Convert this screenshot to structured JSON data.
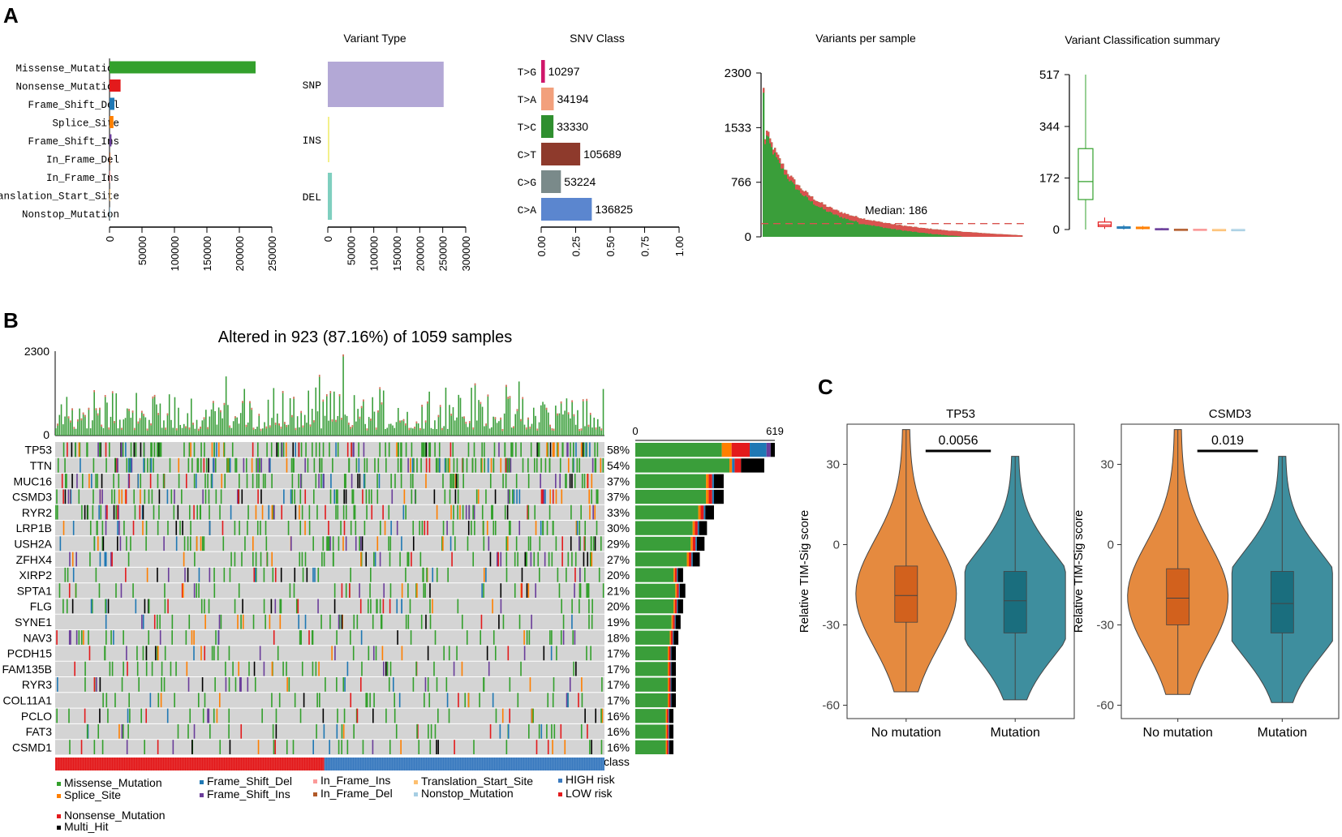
{
  "colors": {
    "missense": "#33a02c",
    "nonsense": "#e31a1c",
    "frameshift_del": "#1f78b4",
    "splice": "#ff7f00",
    "frameshift_ins": "#6a3d9a",
    "inframe_del": "#b15928",
    "inframe_ins": "#fb9a99",
    "translation_start": "#fdbf6f",
    "nonstop": "#a6cee3",
    "multi_hit": "#000000",
    "high_risk": "#3a7abf",
    "low_risk": "#e31a1c",
    "no_mutation": "#e58a3f",
    "mutation": "#3e8e9e",
    "no_mutation_box": "#d2611d",
    "mutation_box": "#1a6e7e",
    "missense_bar": "#3a9e3a"
  },
  "panel_labels": {
    "a": "A",
    "b": "B",
    "c": "C"
  },
  "chart_data": [
    {
      "type": "bar",
      "id": "variant_classification",
      "orientation": "horizontal",
      "categories": [
        "Missense_Mutation",
        "Nonsense_Mutation",
        "Frame_Shift_Del",
        "Splice_Site",
        "Frame_Shift_Ins",
        "In_Frame_Del",
        "In_Frame_Ins",
        "Translation_Start_Site",
        "Nonstop_Mutation"
      ],
      "values": [
        225000,
        17000,
        7500,
        6000,
        3000,
        800,
        600,
        300,
        100
      ],
      "xticks": [
        "0",
        "50000",
        "100000",
        "150000",
        "200000",
        "250000"
      ],
      "xlim": [
        0,
        250000
      ],
      "title": ""
    },
    {
      "type": "bar",
      "id": "variant_type",
      "orientation": "horizontal",
      "title": "Variant Type",
      "categories": [
        "SNP",
        "INS",
        "DEL"
      ],
      "values": [
        252000,
        3500,
        9000
      ],
      "xticks": [
        "0",
        "50000",
        "100000",
        "150000",
        "200000",
        "250000",
        "300000"
      ],
      "xlim": [
        0,
        300000
      ]
    },
    {
      "type": "bar",
      "id": "snv_class",
      "orientation": "horizontal",
      "title": "SNV Class",
      "categories": [
        "T>G",
        "T>A",
        "T>C",
        "C>T",
        "C>G",
        "C>A"
      ],
      "counts": [
        "10297",
        "34194",
        "33330",
        "105689",
        "53224",
        "136825"
      ],
      "values": [
        0.027,
        0.091,
        0.089,
        0.283,
        0.143,
        0.367
      ],
      "xticks": [
        "0.00",
        "0.25",
        "0.50",
        "0.75",
        "1.00"
      ],
      "xlim": [
        0,
        1
      ]
    },
    {
      "type": "bar",
      "id": "variants_per_sample",
      "title": "Variants per sample",
      "yticks": [
        "2300",
        "1533",
        "766",
        "0"
      ],
      "ylim": [
        0,
        2300
      ],
      "median": 186,
      "median_label": "Median: 186",
      "n_samples": 1059
    },
    {
      "type": "box",
      "id": "variant_classification_summary",
      "title": "Variant Classification summary",
      "yticks": [
        "517",
        "344",
        "172",
        "0"
      ],
      "ylim": [
        0,
        517
      ],
      "boxes": [
        {
          "name": "Missense_Mutation",
          "q1": 100,
          "median": 160,
          "q3": 270,
          "min": 0,
          "max": 517
        },
        {
          "name": "Nonsense_Mutation",
          "q1": 10,
          "median": 15,
          "q3": 25,
          "min": 2,
          "max": 40
        },
        {
          "name": "Frame_Shift_Del",
          "q1": 4,
          "median": 6,
          "q3": 9,
          "min": 0,
          "max": 15
        },
        {
          "name": "Splice_Site",
          "q1": 3,
          "median": 5,
          "q3": 8,
          "min": 0,
          "max": 12
        },
        {
          "name": "Frame_Shift_Ins",
          "q1": 1,
          "median": 2,
          "q3": 3,
          "min": 0,
          "max": 5
        },
        {
          "name": "In_Frame_Del",
          "q1": 0,
          "median": 1,
          "q3": 1,
          "min": 0,
          "max": 2
        },
        {
          "name": "In_Frame_Ins",
          "q1": 0,
          "median": 0,
          "q3": 1,
          "min": 0,
          "max": 1
        },
        {
          "name": "Translation_Start_Site",
          "q1": 0,
          "median": 0,
          "q3": 0,
          "min": 0,
          "max": 1
        },
        {
          "name": "Nonstop_Mutation",
          "q1": 0,
          "median": 0,
          "q3": 0,
          "min": 0,
          "max": 1
        }
      ]
    },
    {
      "type": "heatmap",
      "id": "oncoplot",
      "title": "Altered in 923 (87.16%) of 1059 samples",
      "tmb_yticks": [
        "2300",
        "0"
      ],
      "gene_bar_xticks": [
        "0",
        "619"
      ],
      "class_label": "class",
      "genes": [
        "TP53",
        "TTN",
        "MUC16",
        "CSMD3",
        "RYR2",
        "LRP1B",
        "USH2A",
        "ZFHX4",
        "XIRP2",
        "SPTA1",
        "FLG",
        "SYNE1",
        "NAV3",
        "PCDH15",
        "FAM135B",
        "RYR3",
        "COL11A1",
        "PCLO",
        "FAT3",
        "CSMD1"
      ],
      "percents": [
        "58%",
        "54%",
        "37%",
        "37%",
        "33%",
        "30%",
        "29%",
        "27%",
        "20%",
        "21%",
        "20%",
        "19%",
        "18%",
        "17%",
        "17%",
        "17%",
        "17%",
        "16%",
        "16%",
        "16%"
      ],
      "counts": [
        619,
        572,
        392,
        392,
        349,
        318,
        307,
        286,
        212,
        222,
        212,
        201,
        191,
        180,
        180,
        180,
        180,
        169,
        169,
        169
      ],
      "legend": [
        {
          "label": "Missense_Mutation",
          "key": "missense"
        },
        {
          "label": "Splice_Site",
          "key": "splice"
        },
        {
          "label": "Nonsense_Mutation",
          "key": "nonsense"
        },
        {
          "label": "Multi_Hit",
          "key": "multi_hit"
        },
        {
          "label": "Frame_Shift_Del",
          "key": "frameshift_del"
        },
        {
          "label": "Frame_Shift_Ins",
          "key": "frameshift_ins"
        },
        {
          "label": "In_Frame_Ins",
          "key": "inframe_ins"
        },
        {
          "label": "In_Frame_Del",
          "key": "inframe_del"
        },
        {
          "label": "Translation_Start_Site",
          "key": "translation_start"
        },
        {
          "label": "Nonstop_Mutation",
          "key": "nonstop"
        },
        {
          "label": "HIGH risk",
          "key": "high_risk"
        },
        {
          "label": "LOW risk",
          "key": "low_risk"
        }
      ]
    },
    {
      "type": "violin",
      "id": "tp53_violin",
      "title": "TP53",
      "ylabel": "Relative TIM-Sig score",
      "categories": [
        "No mutation",
        "Mutation"
      ],
      "yticks": [
        "30",
        "0",
        "-30",
        "-60"
      ],
      "ylim": [
        -65,
        45
      ],
      "p_value": "0.0056",
      "groups": [
        {
          "q1": -29,
          "median": -19,
          "q3": -8,
          "min": -55,
          "max": 43
        },
        {
          "q1": -33,
          "median": -21,
          "q3": -10,
          "min": -58,
          "max": 33
        }
      ]
    },
    {
      "type": "violin",
      "id": "csmd3_violin",
      "title": "CSMD3",
      "ylabel": "Relative TIM-Sig score",
      "categories": [
        "No mutation",
        "Mutation"
      ],
      "yticks": [
        "30",
        "0",
        "-30",
        "-60"
      ],
      "ylim": [
        -65,
        45
      ],
      "p_value": "0.019",
      "groups": [
        {
          "q1": -30,
          "median": -20,
          "q3": -9,
          "min": -56,
          "max": 43
        },
        {
          "q1": -33,
          "median": -22,
          "q3": -10,
          "min": -59,
          "max": 33
        }
      ]
    }
  ]
}
